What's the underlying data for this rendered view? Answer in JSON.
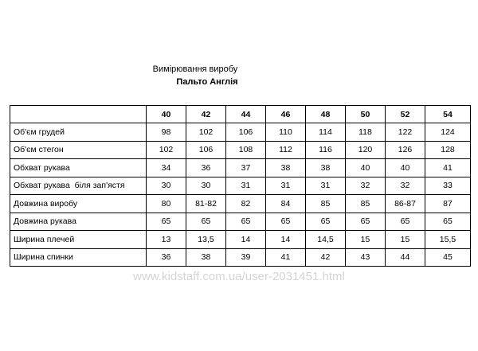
{
  "header": {
    "title": "Вимірювання виробу",
    "subtitle": "Пальто Англія"
  },
  "table": {
    "sizes": [
      "40",
      "42",
      "44",
      "46",
      "48",
      "50",
      "52",
      "54"
    ],
    "rows": [
      {
        "label": "Об'єм грудей",
        "cells": [
          "98",
          "102",
          "106",
          "110",
          "114",
          "118",
          "122",
          "124"
        ]
      },
      {
        "label": "Об'єм стегон",
        "cells": [
          "102",
          "106",
          "108",
          "112",
          "116",
          "120",
          "126",
          "128"
        ]
      },
      {
        "label": "Обхват рукава",
        "cells": [
          "34",
          "36",
          "37",
          "38",
          "38",
          "40",
          "40",
          "41"
        ]
      },
      {
        "label": "Обхват рукава  біля зап'ястя",
        "cells": [
          "30",
          "30",
          "31",
          "31",
          "31",
          "32",
          "32",
          "33"
        ]
      },
      {
        "label": "Довжина виробу",
        "cells": [
          "80",
          "81-82",
          "82",
          "84",
          "85",
          "85",
          "86-87",
          "87"
        ]
      },
      {
        "label": "Довжина рукава",
        "cells": [
          "65",
          "65",
          "65",
          "65",
          "65",
          "65",
          "65",
          "65"
        ]
      },
      {
        "label": "Ширина плечей",
        "cells": [
          "13",
          "13,5",
          "14",
          "14",
          "14,5",
          "15",
          "15",
          "15,5"
        ]
      },
      {
        "label": "Ширина спинки",
        "cells": [
          "36",
          "38",
          "39",
          "41",
          "42",
          "43",
          "44",
          "45"
        ]
      }
    ]
  },
  "watermark": "www.kidstaff.com.ua/user-2031451.html"
}
